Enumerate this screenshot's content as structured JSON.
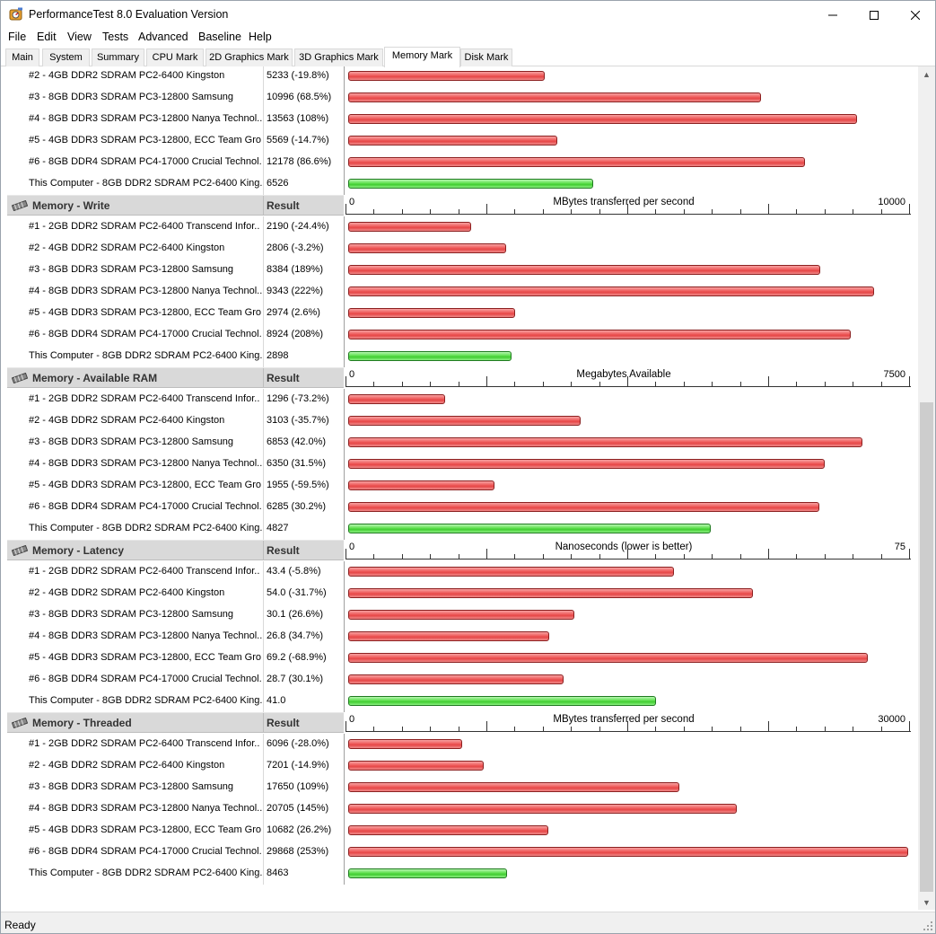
{
  "window": {
    "title": "PerformanceTest 8.0 Evaluation Version"
  },
  "menu": [
    "File",
    "Edit",
    "View",
    "Tests",
    "Advanced",
    "Baseline",
    "Help"
  ],
  "tabs": [
    {
      "label": "Main",
      "active": false
    },
    {
      "label": "System",
      "active": false
    },
    {
      "label": "Summary",
      "active": false
    },
    {
      "label": "CPU Mark",
      "active": false
    },
    {
      "label": "2D Graphics Mark",
      "active": false
    },
    {
      "label": "3D Graphics Mark",
      "active": false
    },
    {
      "label": "Memory Mark",
      "active": true
    },
    {
      "label": "Disk Mark",
      "active": false
    }
  ],
  "colors": {
    "baseline_bar": "#e64646",
    "this_computer_bar": "#40cc30"
  },
  "result_header": "Result",
  "chart_data": [
    {
      "type": "bar",
      "title": "",
      "partial": true,
      "xmax": 15000,
      "rows": [
        {
          "name": "#2 - 4GB DDR2 SDRAM PC2-6400 Kingston",
          "result": "5233 (-19.8%)",
          "value": 5233,
          "computer": false
        },
        {
          "name": "#3 - 8GB DDR3 SDRAM PC3-12800 Samsung",
          "result": "10996 (68.5%)",
          "value": 10996,
          "computer": false
        },
        {
          "name": "#4 - 8GB DDR3 SDRAM PC3-12800 Nanya Technol..",
          "result": "13563 (108%)",
          "value": 13563,
          "computer": false
        },
        {
          "name": "#5 - 4GB DDR3 SDRAM PC3-12800, ECC Team Gro..",
          "result": "5569 (-14.7%)",
          "value": 5569,
          "computer": false
        },
        {
          "name": "#6 - 8GB DDR4 SDRAM PC4-17000 Crucial Technol..",
          "result": "12178 (86.6%)",
          "value": 12178,
          "computer": false
        },
        {
          "name": "This Computer - 8GB DDR2 SDRAM PC2-6400 King..",
          "result": "6526",
          "value": 6526,
          "computer": true
        }
      ]
    },
    {
      "type": "bar",
      "title": "Memory - Write",
      "axis_label": "MBytes transferred per second",
      "xmin": 0,
      "xmax": 10000,
      "rows": [
        {
          "name": "#1 - 2GB DDR2 SDRAM PC2-6400 Transcend Infor..",
          "result": "2190 (-24.4%)",
          "value": 2190,
          "computer": false
        },
        {
          "name": "#2 - 4GB DDR2 SDRAM PC2-6400 Kingston",
          "result": "2806 (-3.2%)",
          "value": 2806,
          "computer": false
        },
        {
          "name": "#3 - 8GB DDR3 SDRAM PC3-12800 Samsung",
          "result": "8384 (189%)",
          "value": 8384,
          "computer": false
        },
        {
          "name": "#4 - 8GB DDR3 SDRAM PC3-12800 Nanya Technol..",
          "result": "9343 (222%)",
          "value": 9343,
          "computer": false
        },
        {
          "name": "#5 - 4GB DDR3 SDRAM PC3-12800, ECC Team Gro..",
          "result": "2974 (2.6%)",
          "value": 2974,
          "computer": false
        },
        {
          "name": "#6 - 8GB DDR4 SDRAM PC4-17000 Crucial Technol..",
          "result": "8924 (208%)",
          "value": 8924,
          "computer": false
        },
        {
          "name": "This Computer - 8GB DDR2 SDRAM PC2-6400 King..",
          "result": "2898",
          "value": 2898,
          "computer": true
        }
      ]
    },
    {
      "type": "bar",
      "title": "Memory - Available RAM",
      "axis_label": "Megabytes Available",
      "xmin": 0,
      "xmax": 7500,
      "rows": [
        {
          "name": "#1 - 2GB DDR2 SDRAM PC2-6400 Transcend Infor..",
          "result": "1296 (-73.2%)",
          "value": 1296,
          "computer": false
        },
        {
          "name": "#2 - 4GB DDR2 SDRAM PC2-6400 Kingston",
          "result": "3103 (-35.7%)",
          "value": 3103,
          "computer": false
        },
        {
          "name": "#3 - 8GB DDR3 SDRAM PC3-12800 Samsung",
          "result": "6853 (42.0%)",
          "value": 6853,
          "computer": false
        },
        {
          "name": "#4 - 8GB DDR3 SDRAM PC3-12800 Nanya Technol..",
          "result": "6350 (31.5%)",
          "value": 6350,
          "computer": false
        },
        {
          "name": "#5 - 4GB DDR3 SDRAM PC3-12800, ECC Team Gro..",
          "result": "1955 (-59.5%)",
          "value": 1955,
          "computer": false
        },
        {
          "name": "#6 - 8GB DDR4 SDRAM PC4-17000 Crucial Technol..",
          "result": "6285 (30.2%)",
          "value": 6285,
          "computer": false
        },
        {
          "name": "This Computer - 8GB DDR2 SDRAM PC2-6400 King..",
          "result": "4827",
          "value": 4827,
          "computer": true
        }
      ]
    },
    {
      "type": "bar",
      "title": "Memory - Latency",
      "axis_label": "Nanoseconds (lower is better)",
      "xmin": 0,
      "xmax": 75,
      "rows": [
        {
          "name": "#1 - 2GB DDR2 SDRAM PC2-6400 Transcend Infor..",
          "result": "43.4 (-5.8%)",
          "value": 43.4,
          "computer": false
        },
        {
          "name": "#2 - 4GB DDR2 SDRAM PC2-6400 Kingston",
          "result": "54.0 (-31.7%)",
          "value": 54.0,
          "computer": false
        },
        {
          "name": "#3 - 8GB DDR3 SDRAM PC3-12800 Samsung",
          "result": "30.1 (26.6%)",
          "value": 30.1,
          "computer": false
        },
        {
          "name": "#4 - 8GB DDR3 SDRAM PC3-12800 Nanya Technol..",
          "result": "26.8 (34.7%)",
          "value": 26.8,
          "computer": false
        },
        {
          "name": "#5 - 4GB DDR3 SDRAM PC3-12800, ECC Team Gro..",
          "result": "69.2 (-68.9%)",
          "value": 69.2,
          "computer": false
        },
        {
          "name": "#6 - 8GB DDR4 SDRAM PC4-17000 Crucial Technol..",
          "result": "28.7 (30.1%)",
          "value": 28.7,
          "computer": false
        },
        {
          "name": "This Computer - 8GB DDR2 SDRAM PC2-6400 King..",
          "result": "41.0",
          "value": 41.0,
          "computer": true
        }
      ]
    },
    {
      "type": "bar",
      "title": "Memory - Threaded",
      "axis_label": "MBytes transferred per second",
      "xmin": 0,
      "xmax": 30000,
      "rows": [
        {
          "name": "#1 - 2GB DDR2 SDRAM PC2-6400 Transcend Infor..",
          "result": "6096 (-28.0%)",
          "value": 6096,
          "computer": false
        },
        {
          "name": "#2 - 4GB DDR2 SDRAM PC2-6400 Kingston",
          "result": "7201 (-14.9%)",
          "value": 7201,
          "computer": false
        },
        {
          "name": "#3 - 8GB DDR3 SDRAM PC3-12800 Samsung",
          "result": "17650 (109%)",
          "value": 17650,
          "computer": false
        },
        {
          "name": "#4 - 8GB DDR3 SDRAM PC3-12800 Nanya Technol..",
          "result": "20705 (145%)",
          "value": 20705,
          "computer": false
        },
        {
          "name": "#5 - 4GB DDR3 SDRAM PC3-12800, ECC Team Gro..",
          "result": "10682 (26.2%)",
          "value": 10682,
          "computer": false
        },
        {
          "name": "#6 - 8GB DDR4 SDRAM PC4-17000 Crucial Technol..",
          "result": "29868 (253%)",
          "value": 29868,
          "computer": false
        },
        {
          "name": "This Computer - 8GB DDR2 SDRAM PC2-6400 King..",
          "result": "8463",
          "value": 8463,
          "computer": true
        }
      ]
    }
  ],
  "status": {
    "text": "Ready"
  }
}
